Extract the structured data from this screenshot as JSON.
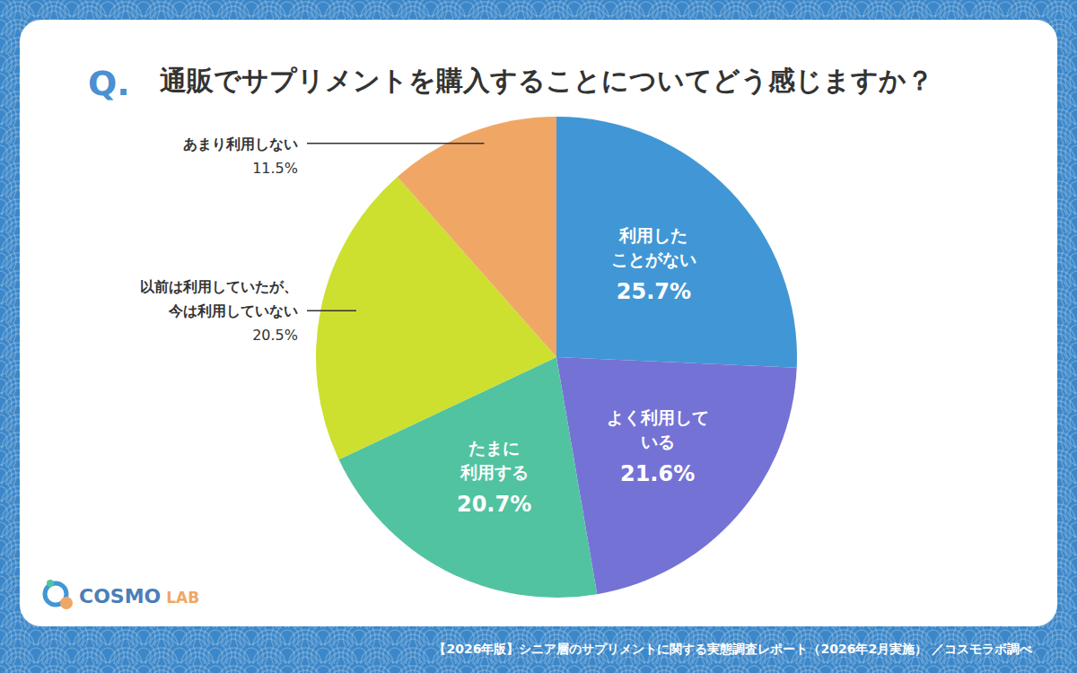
{
  "chart_data": {
    "type": "pie",
    "title": "通販でサプリメントを購入することについてどう感じますか？",
    "categories": [
      "利用したことがない",
      "よく利用している",
      "たまに利用する",
      "以前は利用していたが、今は利用していない",
      "あまり利用しない"
    ],
    "values": [
      25.7,
      21.6,
      20.7,
      20.5,
      11.5
    ],
    "value_labels": [
      "25.7%",
      "21.6%",
      "20.7%",
      "20.5%",
      "11.5%"
    ],
    "colors": [
      "#4197d5",
      "#7572d6",
      "#52c3a0",
      "#cde02f",
      "#f0a766"
    ],
    "data_labels": true,
    "annotations": [
      "Q.",
      "COSMO LAB",
      "【2026年版】シニア層のサプリメントに関する実態調査レポート（2026年2月実施） ／コスモラボ調べ"
    ]
  }
}
